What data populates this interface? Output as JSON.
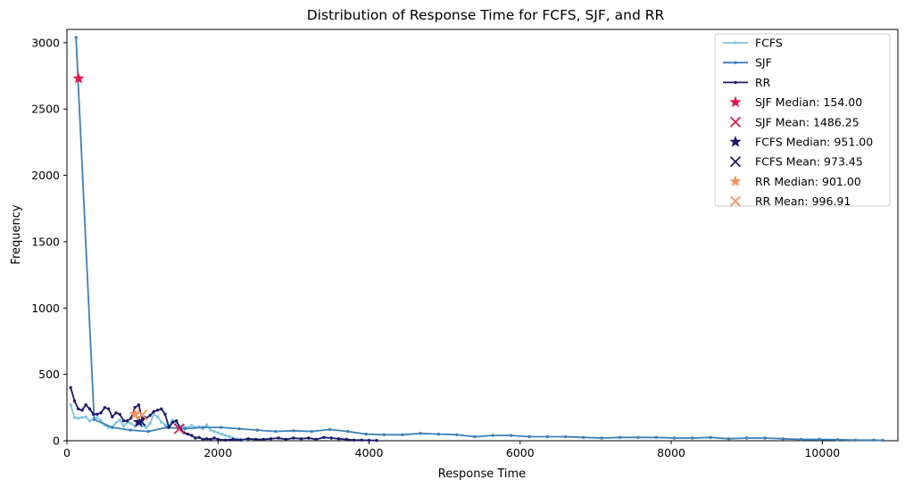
{
  "chart_data": {
    "type": "line",
    "title": "Distribution of Response Time for FCFS, SJF, and RR",
    "xlabel": "Response Time",
    "ylabel": "Frequency",
    "xlim": [
      0,
      11000
    ],
    "ylim": [
      0,
      3100
    ],
    "xticks": [
      0,
      2000,
      4000,
      6000,
      8000,
      10000
    ],
    "yticks": [
      0,
      500,
      1000,
      1500,
      2000,
      2500,
      3000
    ],
    "legend_position": "top-right",
    "series": [
      {
        "name": "FCFS",
        "color": "#7ec4e0",
        "x": [
          50,
          100,
          150,
          200,
          250,
          300,
          350,
          400,
          450,
          500,
          550,
          600,
          650,
          700,
          750,
          800,
          850,
          900,
          950,
          1000,
          1050,
          1100,
          1150,
          1200,
          1250,
          1300,
          1350,
          1400,
          1450,
          1500,
          1550,
          1600,
          1650,
          1700,
          1750,
          1800,
          1850,
          1900,
          1950,
          2000,
          2050,
          2100,
          2150,
          2200,
          2250,
          2300,
          2350
        ],
        "y": [
          270,
          175,
          170,
          175,
          180,
          150,
          160,
          175,
          150,
          120,
          100,
          100,
          135,
          155,
          110,
          140,
          130,
          110,
          140,
          115,
          100,
          130,
          200,
          180,
          140,
          120,
          110,
          155,
          130,
          110,
          105,
          100,
          115,
          100,
          105,
          90,
          120,
          80,
          70,
          60,
          50,
          40,
          30,
          20,
          15,
          10,
          5
        ]
      },
      {
        "name": "SJF",
        "color": "#3d7fb6",
        "x": [
          120,
          360,
          600,
          840,
          1080,
          1320,
          1560,
          1800,
          2040,
          2280,
          2520,
          2760,
          3000,
          3240,
          3480,
          3720,
          3960,
          4200,
          4440,
          4680,
          4920,
          5160,
          5400,
          5640,
          5880,
          6120,
          6360,
          6600,
          6840,
          7080,
          7320,
          7560,
          7800,
          8040,
          8280,
          8520,
          8760,
          9000,
          9240,
          9480,
          9720,
          9960,
          10200,
          10440,
          10680,
          10800
        ],
        "y": [
          3040,
          160,
          100,
          80,
          70,
          100,
          90,
          100,
          100,
          90,
          80,
          70,
          75,
          70,
          85,
          70,
          50,
          45,
          45,
          55,
          50,
          45,
          30,
          40,
          40,
          30,
          30,
          30,
          25,
          20,
          25,
          25,
          25,
          20,
          20,
          25,
          15,
          20,
          20,
          15,
          10,
          10,
          8,
          5,
          5,
          3
        ]
      },
      {
        "name": "RR",
        "color": "#1c1a6b",
        "x": [
          50,
          100,
          150,
          200,
          250,
          300,
          350,
          400,
          450,
          500,
          550,
          600,
          650,
          700,
          750,
          800,
          850,
          900,
          950,
          1000,
          1050,
          1100,
          1150,
          1200,
          1250,
          1300,
          1350,
          1400,
          1450,
          1500,
          1550,
          1600,
          1650,
          1700,
          1750,
          1800,
          1850,
          1900,
          1950,
          2000,
          2100,
          2200,
          2300,
          2400,
          2500,
          2600,
          2700,
          2800,
          2900,
          3000,
          3100,
          3200,
          3300,
          3400,
          3500,
          3600,
          3700,
          3800,
          3900,
          4000,
          4100
        ],
        "y": [
          400,
          300,
          240,
          230,
          270,
          240,
          200,
          200,
          210,
          250,
          240,
          180,
          210,
          200,
          150,
          150,
          170,
          250,
          270,
          160,
          170,
          190,
          220,
          230,
          240,
          200,
          100,
          140,
          150,
          90,
          60,
          50,
          40,
          20,
          25,
          10,
          15,
          10,
          20,
          10,
          5,
          10,
          5,
          15,
          10,
          10,
          15,
          20,
          10,
          20,
          15,
          20,
          10,
          25,
          20,
          15,
          10,
          5,
          5,
          3,
          2
        ]
      }
    ],
    "markers": [
      {
        "name": "SJF Median: 154.00",
        "shape": "star",
        "color": "#e0194a",
        "x": 154,
        "y": 2730
      },
      {
        "name": "SJF Mean: 1486.25",
        "shape": "x",
        "color": "#e0194a",
        "x": 1486,
        "y": 90
      },
      {
        "name": "FCFS Median: 951.00",
        "shape": "star",
        "color": "#1c1a6b",
        "x": 951,
        "y": 140
      },
      {
        "name": "FCFS Mean: 973.45",
        "shape": "x",
        "color": "#1c1a6b",
        "x": 973,
        "y": 150
      },
      {
        "name": "RR Median: 901.00",
        "shape": "star",
        "color": "#f4935f",
        "x": 901,
        "y": 200
      },
      {
        "name": "RR Mean: 996.91",
        "shape": "x",
        "color": "#f4935f",
        "x": 997,
        "y": 195
      }
    ]
  }
}
